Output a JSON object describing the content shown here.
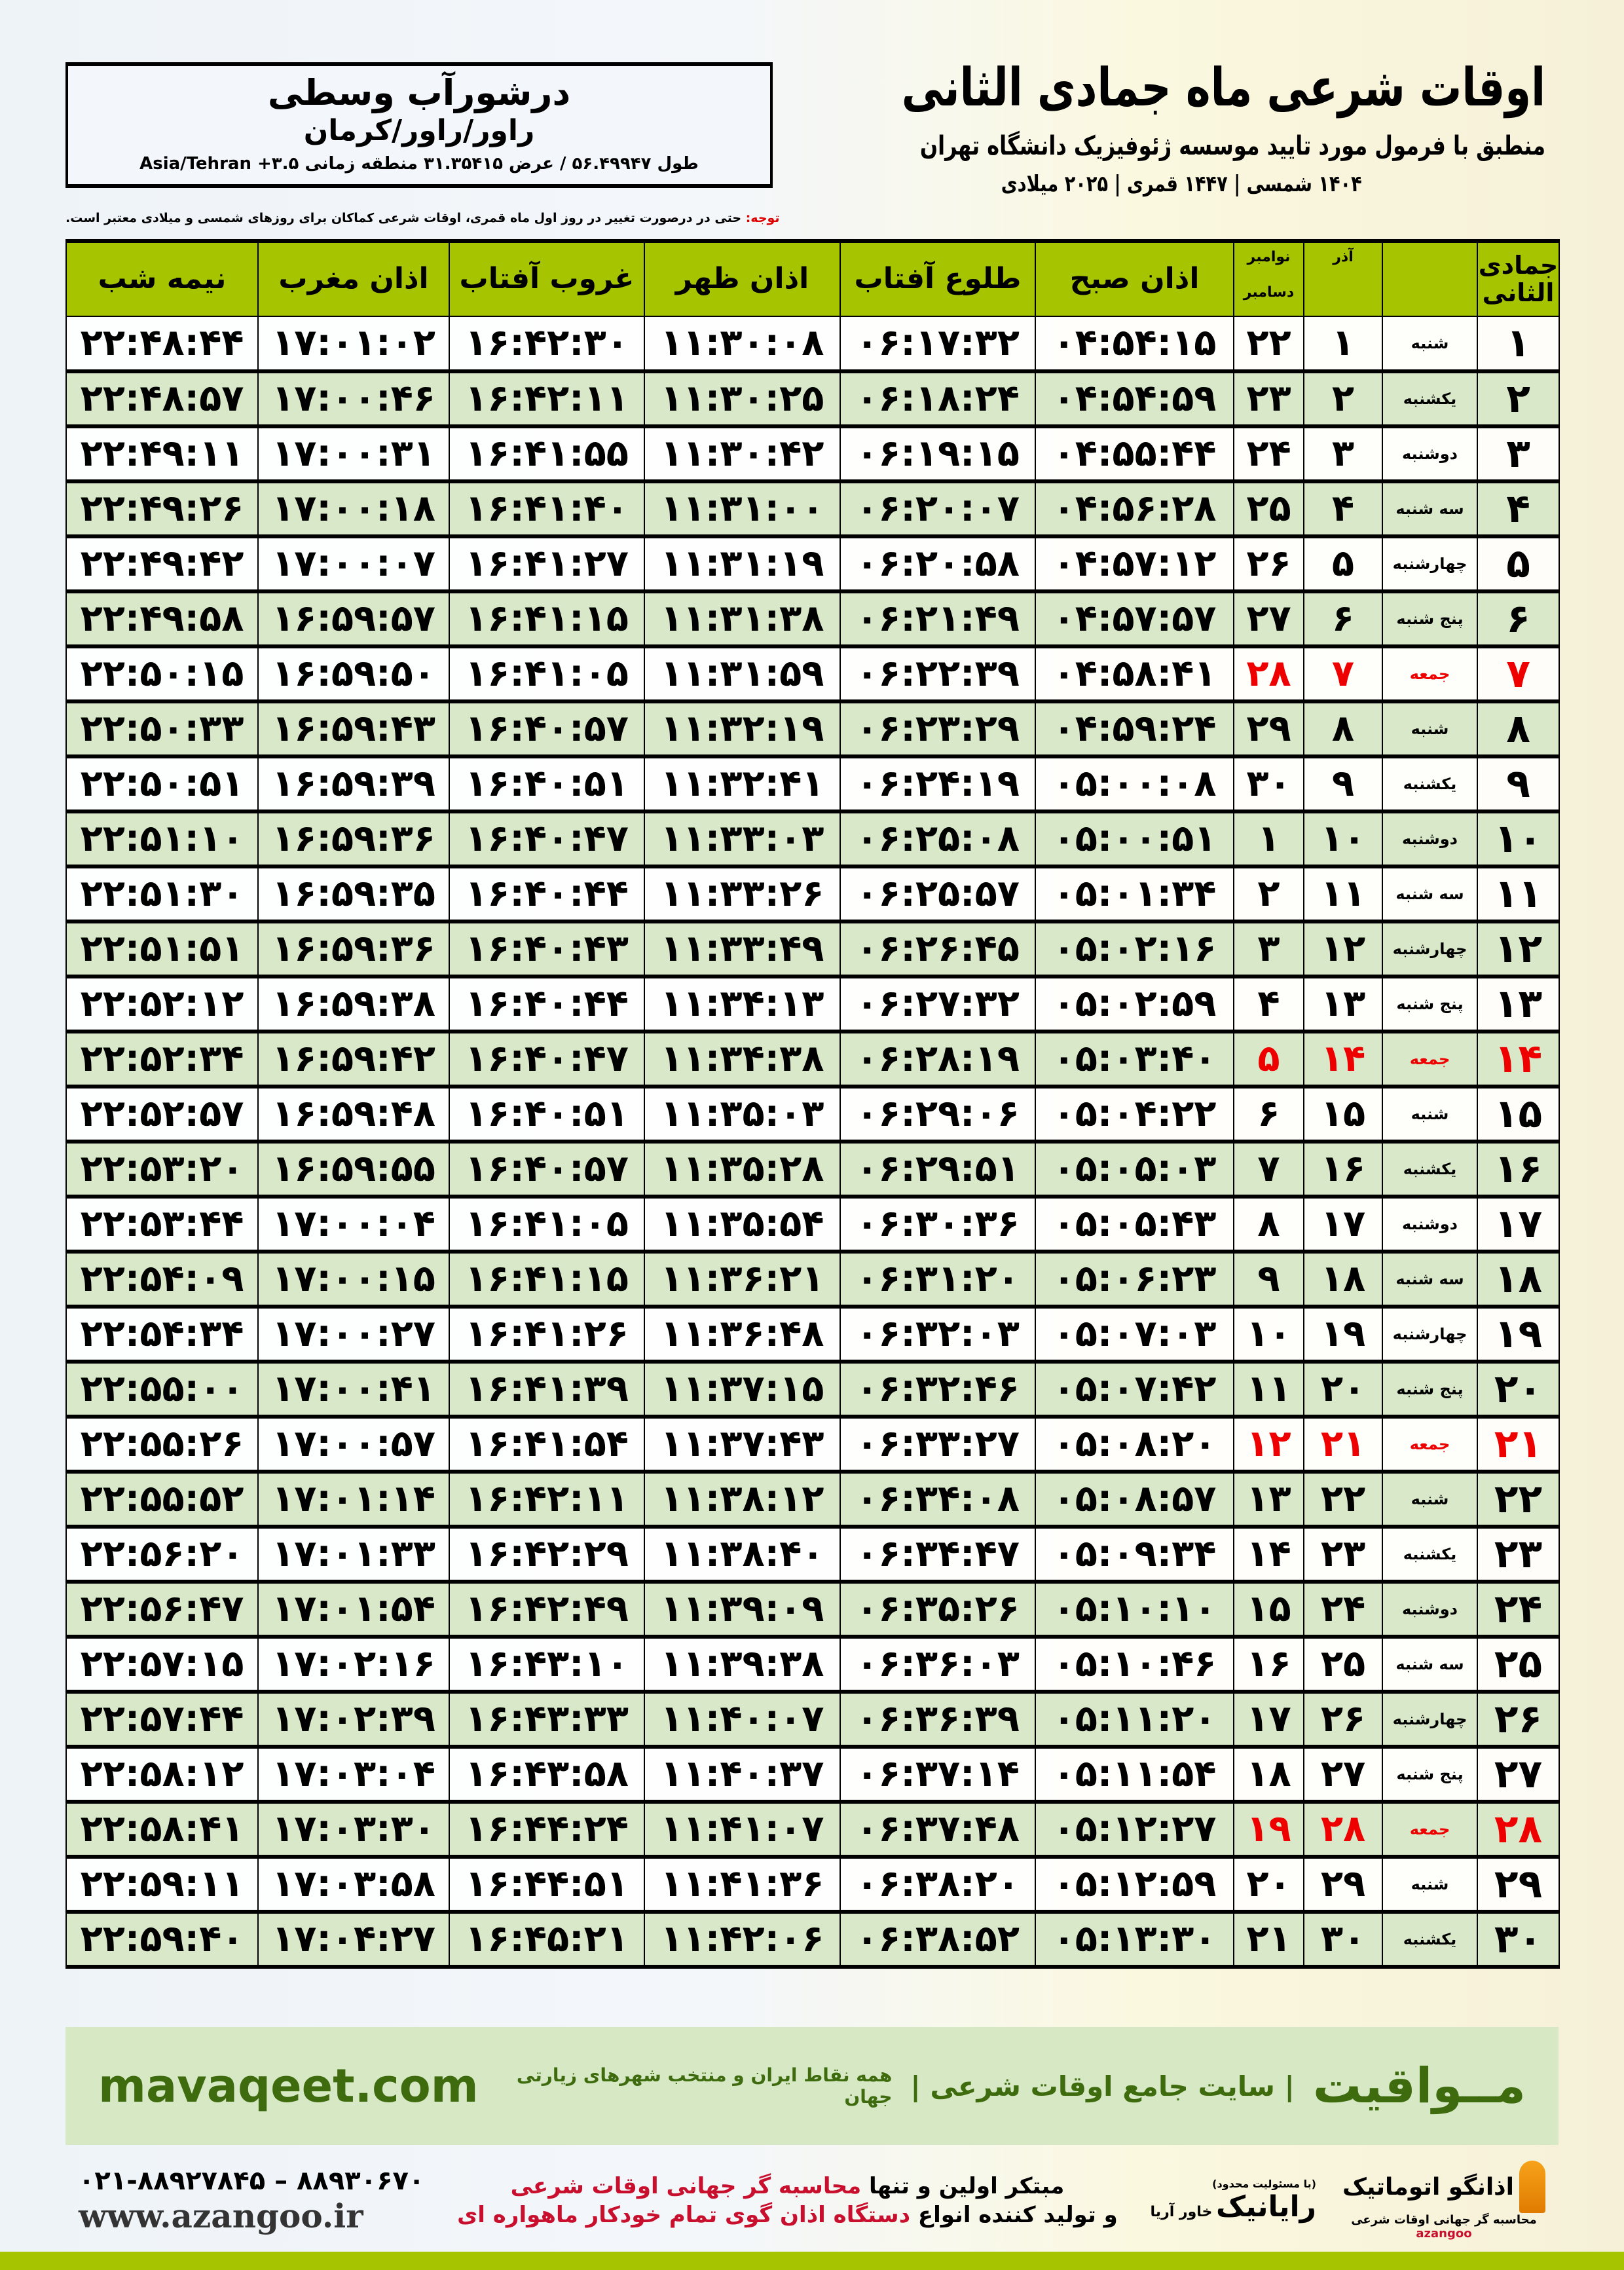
{
  "location": {
    "name": "درشورآب وسطی",
    "region": "راور/راور/کرمان",
    "coords": "طول ۵۶.۴۹۹۴۷ / عرض ۳۱.۳۵۴۱۵ منطقه زمانی ۳.۵+ Asia/Tehran"
  },
  "header": {
    "title": "اوقات شرعی ماه جمادی الثانی",
    "subtitle": "منطبق با فرمول مورد تایید موسسه ژئوفیزیک دانشگاه تهران",
    "years": "۱۴۰۴ شمسی | ۱۴۴۷ قمری | ۲۰۲۵ میلادی"
  },
  "note": {
    "label": "توجه:",
    "text": " حتی در درصورت تغییر در روز اول ماه قمری، اوقات شرعی کماکان برای روزهای شمسی و میلادی معتبر است."
  },
  "columns": {
    "hijri": "جمادی الثانی",
    "azar": "آذر",
    "greg1": "نوامبر",
    "greg2": "دسامبر",
    "fajr": "اذان صبح",
    "sunrise": "طلوع آفتاب",
    "dhuhr": "اذان ظهر",
    "sunset": "غروب آفتاب",
    "maghrib": "اذان مغرب",
    "midnight": "نیمه شب"
  },
  "colors": {
    "header": "#a6c400",
    "even_row": "#d9e8c8",
    "friday": "#e00000",
    "brand": "#3e6b0e"
  },
  "rows": [
    [
      "۱",
      "شنبه",
      "۱",
      "۲۲",
      "۰۴:۵۴:۱۵",
      "۰۶:۱۷:۳۲",
      "۱۱:۳۰:۰۸",
      "۱۶:۴۲:۳۰",
      "۱۷:۰۱:۰۲",
      "۲۲:۴۸:۴۴"
    ],
    [
      "۲",
      "یکشنبه",
      "۲",
      "۲۳",
      "۰۴:۵۴:۵۹",
      "۰۶:۱۸:۲۴",
      "۱۱:۳۰:۲۵",
      "۱۶:۴۲:۱۱",
      "۱۷:۰۰:۴۶",
      "۲۲:۴۸:۵۷"
    ],
    [
      "۳",
      "دوشنبه",
      "۳",
      "۲۴",
      "۰۴:۵۵:۴۴",
      "۰۶:۱۹:۱۵",
      "۱۱:۳۰:۴۲",
      "۱۶:۴۱:۵۵",
      "۱۷:۰۰:۳۱",
      "۲۲:۴۹:۱۱"
    ],
    [
      "۴",
      "سه شنبه",
      "۴",
      "۲۵",
      "۰۴:۵۶:۲۸",
      "۰۶:۲۰:۰۷",
      "۱۱:۳۱:۰۰",
      "۱۶:۴۱:۴۰",
      "۱۷:۰۰:۱۸",
      "۲۲:۴۹:۲۶"
    ],
    [
      "۵",
      "چهارشنبه",
      "۵",
      "۲۶",
      "۰۴:۵۷:۱۲",
      "۰۶:۲۰:۵۸",
      "۱۱:۳۱:۱۹",
      "۱۶:۴۱:۲۷",
      "۱۷:۰۰:۰۷",
      "۲۲:۴۹:۴۲"
    ],
    [
      "۶",
      "پنج شنبه",
      "۶",
      "۲۷",
      "۰۴:۵۷:۵۷",
      "۰۶:۲۱:۴۹",
      "۱۱:۳۱:۳۸",
      "۱۶:۴۱:۱۵",
      "۱۶:۵۹:۵۷",
      "۲۲:۴۹:۵۸"
    ],
    [
      "۷",
      "جمعه",
      "۷",
      "۲۸",
      "۰۴:۵۸:۴۱",
      "۰۶:۲۲:۳۹",
      "۱۱:۳۱:۵۹",
      "۱۶:۴۱:۰۵",
      "۱۶:۵۹:۵۰",
      "۲۲:۵۰:۱۵"
    ],
    [
      "۸",
      "شنبه",
      "۸",
      "۲۹",
      "۰۴:۵۹:۲۴",
      "۰۶:۲۳:۲۹",
      "۱۱:۳۲:۱۹",
      "۱۶:۴۰:۵۷",
      "۱۶:۵۹:۴۳",
      "۲۲:۵۰:۳۳"
    ],
    [
      "۹",
      "یکشنبه",
      "۹",
      "۳۰",
      "۰۵:۰۰:۰۸",
      "۰۶:۲۴:۱۹",
      "۱۱:۳۲:۴۱",
      "۱۶:۴۰:۵۱",
      "۱۶:۵۹:۳۹",
      "۲۲:۵۰:۵۱"
    ],
    [
      "۱۰",
      "دوشنبه",
      "۱۰",
      "۱",
      "۰۵:۰۰:۵۱",
      "۰۶:۲۵:۰۸",
      "۱۱:۳۳:۰۳",
      "۱۶:۴۰:۴۷",
      "۱۶:۵۹:۳۶",
      "۲۲:۵۱:۱۰"
    ],
    [
      "۱۱",
      "سه شنبه",
      "۱۱",
      "۲",
      "۰۵:۰۱:۳۴",
      "۰۶:۲۵:۵۷",
      "۱۱:۳۳:۲۶",
      "۱۶:۴۰:۴۴",
      "۱۶:۵۹:۳۵",
      "۲۲:۵۱:۳۰"
    ],
    [
      "۱۲",
      "چهارشنبه",
      "۱۲",
      "۳",
      "۰۵:۰۲:۱۶",
      "۰۶:۲۶:۴۵",
      "۱۱:۳۳:۴۹",
      "۱۶:۴۰:۴۳",
      "۱۶:۵۹:۳۶",
      "۲۲:۵۱:۵۱"
    ],
    [
      "۱۳",
      "پنج شنبه",
      "۱۳",
      "۴",
      "۰۵:۰۲:۵۹",
      "۰۶:۲۷:۳۲",
      "۱۱:۳۴:۱۳",
      "۱۶:۴۰:۴۴",
      "۱۶:۵۹:۳۸",
      "۲۲:۵۲:۱۲"
    ],
    [
      "۱۴",
      "جمعه",
      "۱۴",
      "۵",
      "۰۵:۰۳:۴۰",
      "۰۶:۲۸:۱۹",
      "۱۱:۳۴:۳۸",
      "۱۶:۴۰:۴۷",
      "۱۶:۵۹:۴۲",
      "۲۲:۵۲:۳۴"
    ],
    [
      "۱۵",
      "شنبه",
      "۱۵",
      "۶",
      "۰۵:۰۴:۲۲",
      "۰۶:۲۹:۰۶",
      "۱۱:۳۵:۰۳",
      "۱۶:۴۰:۵۱",
      "۱۶:۵۹:۴۸",
      "۲۲:۵۲:۵۷"
    ],
    [
      "۱۶",
      "یکشنبه",
      "۱۶",
      "۷",
      "۰۵:۰۵:۰۳",
      "۰۶:۲۹:۵۱",
      "۱۱:۳۵:۲۸",
      "۱۶:۴۰:۵۷",
      "۱۶:۵۹:۵۵",
      "۲۲:۵۳:۲۰"
    ],
    [
      "۱۷",
      "دوشنبه",
      "۱۷",
      "۸",
      "۰۵:۰۵:۴۳",
      "۰۶:۳۰:۳۶",
      "۱۱:۳۵:۵۴",
      "۱۶:۴۱:۰۵",
      "۱۷:۰۰:۰۴",
      "۲۲:۵۳:۴۴"
    ],
    [
      "۱۸",
      "سه شنبه",
      "۱۸",
      "۹",
      "۰۵:۰۶:۲۳",
      "۰۶:۳۱:۲۰",
      "۱۱:۳۶:۲۱",
      "۱۶:۴۱:۱۵",
      "۱۷:۰۰:۱۵",
      "۲۲:۵۴:۰۹"
    ],
    [
      "۱۹",
      "چهارشنبه",
      "۱۹",
      "۱۰",
      "۰۵:۰۷:۰۳",
      "۰۶:۳۲:۰۳",
      "۱۱:۳۶:۴۸",
      "۱۶:۴۱:۲۶",
      "۱۷:۰۰:۲۷",
      "۲۲:۵۴:۳۴"
    ],
    [
      "۲۰",
      "پنج شنبه",
      "۲۰",
      "۱۱",
      "۰۵:۰۷:۴۲",
      "۰۶:۳۲:۴۶",
      "۱۱:۳۷:۱۵",
      "۱۶:۴۱:۳۹",
      "۱۷:۰۰:۴۱",
      "۲۲:۵۵:۰۰"
    ],
    [
      "۲۱",
      "جمعه",
      "۲۱",
      "۱۲",
      "۰۵:۰۸:۲۰",
      "۰۶:۳۳:۲۷",
      "۱۱:۳۷:۴۳",
      "۱۶:۴۱:۵۴",
      "۱۷:۰۰:۵۷",
      "۲۲:۵۵:۲۶"
    ],
    [
      "۲۲",
      "شنبه",
      "۲۲",
      "۱۳",
      "۰۵:۰۸:۵۷",
      "۰۶:۳۴:۰۸",
      "۱۱:۳۸:۱۲",
      "۱۶:۴۲:۱۱",
      "۱۷:۰۱:۱۴",
      "۲۲:۵۵:۵۲"
    ],
    [
      "۲۳",
      "یکشنبه",
      "۲۳",
      "۱۴",
      "۰۵:۰۹:۳۴",
      "۰۶:۳۴:۴۷",
      "۱۱:۳۸:۴۰",
      "۱۶:۴۲:۲۹",
      "۱۷:۰۱:۳۳",
      "۲۲:۵۶:۲۰"
    ],
    [
      "۲۴",
      "دوشنبه",
      "۲۴",
      "۱۵",
      "۰۵:۱۰:۱۰",
      "۰۶:۳۵:۲۶",
      "۱۱:۳۹:۰۹",
      "۱۶:۴۲:۴۹",
      "۱۷:۰۱:۵۴",
      "۲۲:۵۶:۴۷"
    ],
    [
      "۲۵",
      "سه شنبه",
      "۲۵",
      "۱۶",
      "۰۵:۱۰:۴۶",
      "۰۶:۳۶:۰۳",
      "۱۱:۳۹:۳۸",
      "۱۶:۴۳:۱۰",
      "۱۷:۰۲:۱۶",
      "۲۲:۵۷:۱۵"
    ],
    [
      "۲۶",
      "چهارشنبه",
      "۲۶",
      "۱۷",
      "۰۵:۱۱:۲۰",
      "۰۶:۳۶:۳۹",
      "۱۱:۴۰:۰۷",
      "۱۶:۴۳:۳۳",
      "۱۷:۰۲:۳۹",
      "۲۲:۵۷:۴۴"
    ],
    [
      "۲۷",
      "پنج شنبه",
      "۲۷",
      "۱۸",
      "۰۵:۱۱:۵۴",
      "۰۶:۳۷:۱۴",
      "۱۱:۴۰:۳۷",
      "۱۶:۴۳:۵۸",
      "۱۷:۰۳:۰۴",
      "۲۲:۵۸:۱۲"
    ],
    [
      "۲۸",
      "جمعه",
      "۲۸",
      "۱۹",
      "۰۵:۱۲:۲۷",
      "۰۶:۳۷:۴۸",
      "۱۱:۴۱:۰۷",
      "۱۶:۴۴:۲۴",
      "۱۷:۰۳:۳۰",
      "۲۲:۵۸:۴۱"
    ],
    [
      "۲۹",
      "شنبه",
      "۲۹",
      "۲۰",
      "۰۵:۱۲:۵۹",
      "۰۶:۳۸:۲۰",
      "۱۱:۴۱:۳۶",
      "۱۶:۴۴:۵۱",
      "۱۷:۰۳:۵۸",
      "۲۲:۵۹:۱۱"
    ],
    [
      "۳۰",
      "یکشنبه",
      "۳۰",
      "۲۱",
      "۰۵:۱۳:۳۰",
      "۰۶:۳۸:۵۲",
      "۱۱:۴۲:۰۶",
      "۱۶:۴۵:۲۱",
      "۱۷:۰۴:۲۷",
      "۲۲:۵۹:۴۰"
    ]
  ],
  "friday_label": "جمعه",
  "footer": {
    "brand": "مــواقیت",
    "slogan": "| سایت جامع اوقات شرعی |",
    "slogan2": "همه نقاط ایران و منتخب شهرهای زیارتی جهان",
    "site": "mavaqeet.com",
    "phone": "۰۲۱-۸۸۹۲۷۸۴۵ – ۸۸۹۳۰۶۷۰",
    "www": "www.azangoo.ir",
    "promo1a": "مبتکر اولین و تنها ",
    "promo1b": "محاسبه گر جهانی اوقات شرعی",
    "promo2a": "و تولید کننده انواع ",
    "promo2b": "دستگاه اذان گوی تمام خودکار ماهواره ای",
    "logo_azangoo": "اذانگو اتوماتیک",
    "logo_azangoo_sub": "محاسبه گر جهانی اوقات شرعی",
    "logo_azangoo_en": "azangoo",
    "logo_rayanik": "رایانیک",
    "logo_rayanik_sub": "خاور آریا",
    "logo_rayanik_note": "(با مسئولیت محدود)"
  }
}
